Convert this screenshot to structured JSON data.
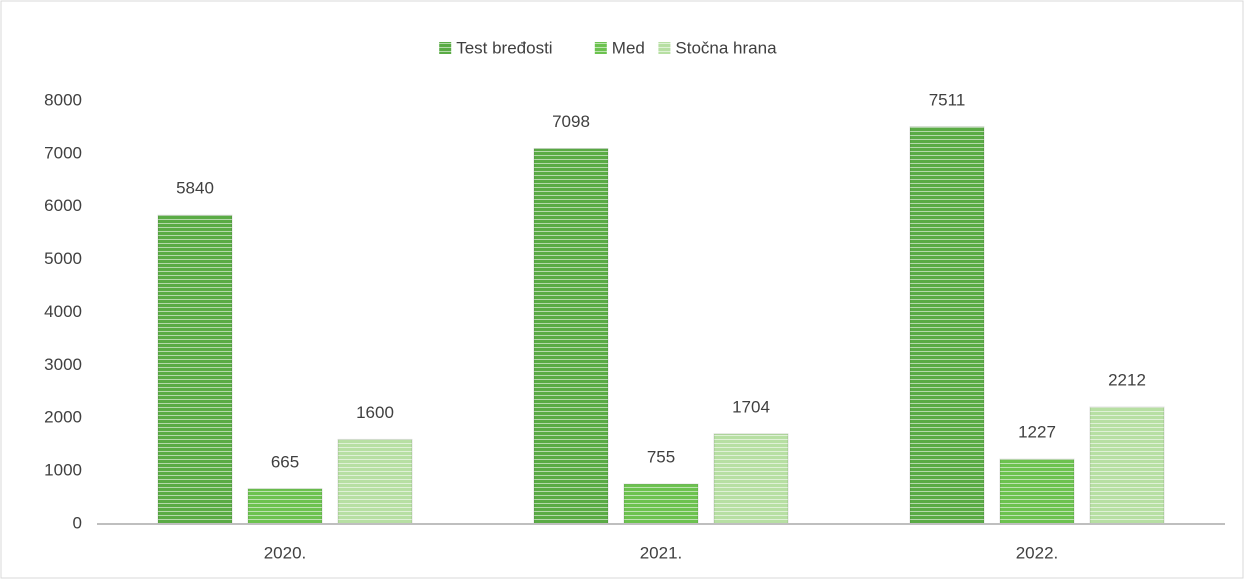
{
  "chart_data": {
    "type": "bar",
    "categories": [
      "2020.",
      "2021.",
      "2022."
    ],
    "series": [
      {
        "name": "Test bređosti",
        "color": "#5aab45",
        "values": [
          5840,
          7098,
          7511
        ]
      },
      {
        "name": "Med",
        "color": "#6cc24f",
        "values": [
          665,
          755,
          1227
        ]
      },
      {
        "name": "Stočna hrana",
        "color": "#b7dfa3",
        "values": [
          1600,
          1704,
          2212
        ]
      }
    ],
    "ylim": [
      0,
      8000
    ],
    "yticks": [
      0,
      1000,
      2000,
      3000,
      4000,
      5000,
      6000,
      7000,
      8000
    ],
    "grid": false,
    "legend": "top"
  }
}
